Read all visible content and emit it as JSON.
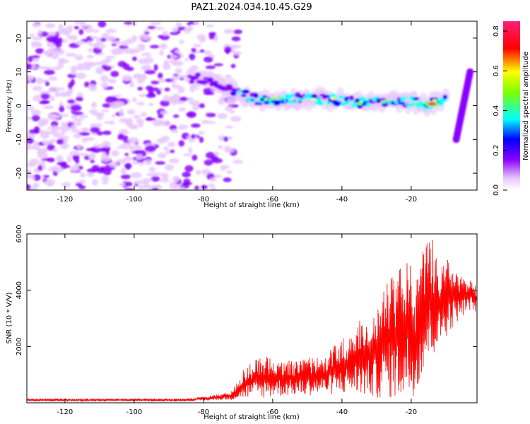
{
  "title": "PAZ1.2024.034.10.45.G29",
  "chart_data": [
    {
      "type": "heatmap",
      "xlabel": "Height of straight line (km)",
      "ylabel": "Frequency (Hz)",
      "xlim": [
        -131,
        -1
      ],
      "ylim": [
        -25,
        25
      ],
      "xticks": [
        -120,
        -100,
        -80,
        -60,
        -40,
        -20
      ],
      "yticks": [
        20,
        10,
        0,
        -10,
        -20
      ],
      "colorbar": {
        "label": "Normalized spectral amplitude",
        "range": [
          0,
          0.85
        ],
        "ticks": [
          0.0,
          0.2,
          0.4,
          0.6,
          0.8
        ],
        "colormap": [
          "#ffffff",
          "#e8c8ff",
          "#8a00ff",
          "#0000ff",
          "#00ffff",
          "#7cff00",
          "#ffff00",
          "#ff0000",
          "#ff1e78"
        ]
      },
      "ridge": {
        "x": [
          -84,
          -80,
          -75,
          -70,
          -66,
          -60,
          -55,
          -50,
          -45,
          -40,
          -35,
          -30,
          -25,
          -20,
          -15,
          -12,
          -10
        ],
        "y": [
          8,
          8,
          6,
          4,
          2,
          1.5,
          2,
          2,
          2,
          1.5,
          1,
          1,
          1.5,
          1,
          0.5,
          1,
          3
        ]
      },
      "ridge_peak": {
        "x": -14,
        "y": 0.5,
        "value": 0.8
      },
      "noise_region": {
        "x": [
          -131,
          -70
        ],
        "y": [
          -25,
          25
        ],
        "level": 0.2
      },
      "secondary_streak": {
        "x": [
          -7,
          -3
        ],
        "y": [
          -10,
          10
        ]
      }
    },
    {
      "type": "line",
      "xlabel": "Height of straight line (km)",
      "ylabel": "SNR (10 * V/V)",
      "xlim": [
        -131,
        -1
      ],
      "ylim": [
        0,
        6000
      ],
      "xticks": [
        -120,
        -100,
        -80,
        -60,
        -40,
        -20
      ],
      "yticks": [
        2000,
        4000,
        6000
      ],
      "series": [
        {
          "color": "#ff0000",
          "envelope": {
            "x": [
              -131,
              -120,
              -100,
              -85,
              -78,
              -72,
              -68,
              -64,
              -60,
              -55,
              -50,
              -45,
              -40,
              -35,
              -30,
              -27,
              -24,
              -21,
              -19,
              -16,
              -14,
              -12,
              -9,
              -6,
              -3,
              -1
            ],
            "low": [
              50,
              50,
              50,
              50,
              80,
              100,
              150,
              150,
              200,
              250,
              250,
              300,
              300,
              250,
              150,
              150,
              100,
              50,
              300,
              1200,
              1500,
              2000,
              2500,
              3000,
              3300,
              3200
            ],
            "high": [
              150,
              150,
              150,
              150,
              250,
              400,
              1300,
              1600,
              1700,
              1500,
              1600,
              1700,
              2300,
              3000,
              3300,
              4600,
              4700,
              5500,
              4000,
              5800,
              6000,
              4800,
              5200,
              4500,
              4400,
              4200
            ]
          }
        }
      ]
    }
  ]
}
